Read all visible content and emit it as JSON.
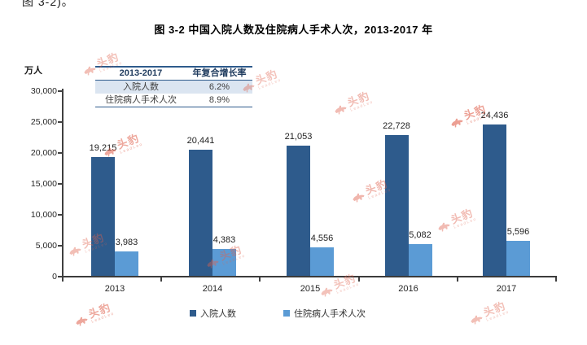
{
  "page": {
    "clipped_top_text": "图 3-2)。",
    "title": "图 3-2 中国入院人数及住院病人手术人次，2013-2017 年",
    "unit_label": "万人"
  },
  "summary_table": {
    "header": [
      "2013-2017",
      "年复合增长率"
    ],
    "rows": [
      {
        "label": "入院人数",
        "value": "6.2%"
      },
      {
        "label": "住院病人手术人次",
        "value": "8.9%"
      }
    ]
  },
  "chart_data": {
    "type": "bar",
    "title": "图 3-2 中国入院人数及住院病人手术人次，2013-2017 年",
    "categories": [
      "2013",
      "2014",
      "2015",
      "2016",
      "2017"
    ],
    "series": [
      {
        "name": "入院人数",
        "color": "#2E5B8C",
        "values": [
          19215,
          20441,
          21053,
          22728,
          24436
        ],
        "labels": [
          "19,215",
          "20,441",
          "21,053",
          "22,728",
          "24,436"
        ]
      },
      {
        "name": "住院病人手术人次",
        "color": "#5B9BD5",
        "values": [
          3983,
          4383,
          4556,
          5082,
          5596
        ],
        "labels": [
          "3,983",
          "4,383",
          "4,556",
          "5,082",
          "5,596"
        ]
      }
    ],
    "xlabel": "",
    "ylabel": "万人",
    "ylim": [
      0,
      30000
    ],
    "ytick_step": 5000,
    "ytick_labels": [
      "0",
      "5,000",
      "10,000",
      "15,000",
      "20,000",
      "25,000",
      "30,000"
    ],
    "grid": false,
    "legend_position": "bottom"
  },
  "watermark": {
    "text": "头豹",
    "subtext": "LeadLeo",
    "color": "#E0604C"
  }
}
